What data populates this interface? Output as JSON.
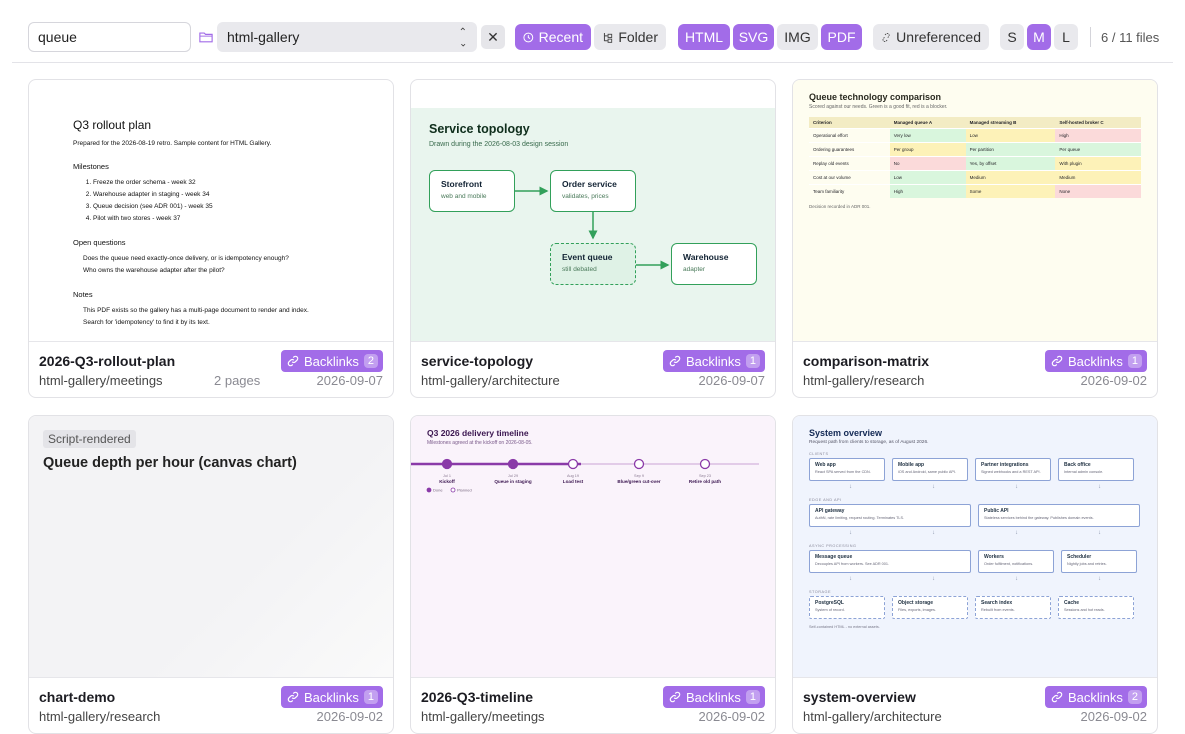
{
  "toolbar": {
    "search_value": "queue",
    "folder_select": "html-gallery",
    "clear_glyph": "✕",
    "sort_chips": [
      {
        "label": "Recent",
        "icon": "clock-icon",
        "active": true
      },
      {
        "label": "Folder",
        "icon": "tree-icon",
        "active": false
      }
    ],
    "type_chips": [
      {
        "label": "HTML",
        "active": true
      },
      {
        "label": "SVG",
        "active": true
      },
      {
        "label": "IMG",
        "active": false
      },
      {
        "label": "PDF",
        "active": true
      }
    ],
    "unreferenced": {
      "label": "Unreferenced",
      "icon": "unlink-icon",
      "active": false
    },
    "size_chips": [
      {
        "label": "S",
        "active": false
      },
      {
        "label": "M",
        "active": true
      },
      {
        "label": "L",
        "active": false
      }
    ],
    "file_count": "6 / 11 files"
  },
  "accent": "#a26ce8",
  "cards": [
    {
      "name": "2026-Q3-rollout-plan",
      "path": "html-gallery/meetings",
      "pages": "2 pages",
      "date": "2026-09-07",
      "backlinks_label": "Backlinks",
      "backlinks_count": "2",
      "thumb": {
        "title": "Q3 rollout plan",
        "intro": "Prepared for the 2026-08-19 retro. Sample content for HTML Gallery.",
        "milestones_heading": "Milestones",
        "milestones": [
          "Freeze the order schema  -  week 32",
          "Warehouse adapter in staging  -  week 34",
          "Queue decision (see ADR 001)  -  week 35",
          "Pilot with two stores  -  week 37"
        ],
        "questions_heading": "Open questions",
        "questions": [
          "Does the queue need exactly-once delivery, or is idempotency enough?",
          "Who owns the warehouse adapter after the pilot?"
        ],
        "notes_heading": "Notes",
        "notes": "This PDF exists so the gallery has a multi-page document to render and index. Search for 'idempotency' to find it by its text."
      }
    },
    {
      "name": "service-topology",
      "path": "html-gallery/architecture",
      "date": "2026-09-07",
      "backlinks_label": "Backlinks",
      "backlinks_count": "1",
      "thumb": {
        "title": "Service topology",
        "subtitle": "Drawn during the 2026-08-03 design session",
        "nodes": [
          {
            "title": "Storefront",
            "sub": "web and mobile"
          },
          {
            "title": "Order service",
            "sub": "validates, prices"
          },
          {
            "title": "Event queue",
            "sub": "still debated"
          },
          {
            "title": "Warehouse",
            "sub": "adapter"
          }
        ]
      }
    },
    {
      "name": "comparison-matrix",
      "path": "html-gallery/research",
      "date": "2026-09-02",
      "backlinks_label": "Backlinks",
      "backlinks_count": "1",
      "thumb": {
        "title": "Queue technology comparison",
        "subtitle": "Scored against our needs. Green is a good fit, red is a blocker.",
        "headers": [
          "Criterion",
          "Managed queue A",
          "Managed streaming B",
          "Self-hosted broker C"
        ],
        "rows": [
          {
            "c": "Operational effort",
            "v": [
              "Very low",
              "Low",
              "High"
            ],
            "s": [
              "g",
              "y",
              "r"
            ]
          },
          {
            "c": "Ordering guarantees",
            "v": [
              "Per group",
              "Per partition",
              "Per queue"
            ],
            "s": [
              "y",
              "g",
              "g"
            ]
          },
          {
            "c": "Replay old events",
            "v": [
              "No",
              "Yes, by offset",
              "With plugin"
            ],
            "s": [
              "r",
              "g",
              "y"
            ]
          },
          {
            "c": "Cost at our volume",
            "v": [
              "Low",
              "Medium",
              "Medium"
            ],
            "s": [
              "g",
              "y",
              "y"
            ]
          },
          {
            "c": "Team familiarity",
            "v": [
              "High",
              "Some",
              "None"
            ],
            "s": [
              "g",
              "y",
              "r"
            ]
          }
        ],
        "footnote": "Decision recorded in ADR 001."
      }
    },
    {
      "name": "chart-demo",
      "path": "html-gallery/research",
      "date": "2026-09-02",
      "backlinks_label": "Backlinks",
      "backlinks_count": "1",
      "thumb": {
        "tag": "Script-rendered",
        "title": "Queue depth per hour (canvas chart)"
      }
    },
    {
      "name": "2026-Q3-timeline",
      "path": "html-gallery/meetings",
      "date": "2026-09-02",
      "backlinks_label": "Backlinks",
      "backlinks_count": "1",
      "thumb": {
        "title": "Q3 2026 delivery timeline",
        "subtitle": "Milestones agreed at the kickoff on 2026-08-05.",
        "milestones": [
          {
            "date": "Jul 1",
            "label": "Kickoff",
            "done": true
          },
          {
            "date": "Jul 29",
            "label": "Queue in staging",
            "done": true
          },
          {
            "date": "Aug 19",
            "label": "Load test",
            "done": false
          },
          {
            "date": "Sep 9",
            "label": "Blue/green cut-over",
            "done": false
          },
          {
            "date": "Sep 23",
            "label": "Retire old path",
            "done": false
          }
        ],
        "legend_done": "Done",
        "legend_planned": "Planned"
      }
    },
    {
      "name": "system-overview",
      "path": "html-gallery/architecture",
      "date": "2026-09-02",
      "backlinks_label": "Backlinks",
      "backlinks_count": "2",
      "thumb": {
        "title": "System overview",
        "subtitle": "Request path from clients to storage, as of August 2026.",
        "lanes": [
          {
            "name": "CLIENTS",
            "boxes": [
              {
                "t": "Web app",
                "s": "React SPA served from the CDN."
              },
              {
                "t": "Mobile app",
                "s": "iOS and Android, same public API."
              },
              {
                "t": "Partner integrations",
                "s": "Signed webhooks and a REST API."
              },
              {
                "t": "Back office",
                "s": "Internal admin console."
              }
            ]
          },
          {
            "name": "EDGE AND API",
            "boxes": [
              {
                "t": "API gateway",
                "s": "AuthN, rate limiting, request routing. Terminates TLS."
              },
              {
                "t": "Public API",
                "s": "Stateless services behind the gateway. Publishes domain events."
              }
            ]
          },
          {
            "name": "ASYNC PROCESSING",
            "boxes": [
              {
                "t": "Message queue",
                "s": "Decouples API from workers. See ADR 001."
              },
              {
                "t": "Workers",
                "s": "Order fulfilment, notifications."
              },
              {
                "t": "Scheduler",
                "s": "Nightly jobs and retries."
              }
            ]
          },
          {
            "name": "STORAGE",
            "boxes": [
              {
                "t": "PostgreSQL",
                "s": "System of record."
              },
              {
                "t": "Object storage",
                "s": "Files, exports, images."
              },
              {
                "t": "Search index",
                "s": "Rebuilt from events."
              },
              {
                "t": "Cache",
                "s": "Sessions and hot reads."
              }
            ]
          }
        ],
        "footnote": "Self-contained HTML - no external assets."
      }
    }
  ]
}
